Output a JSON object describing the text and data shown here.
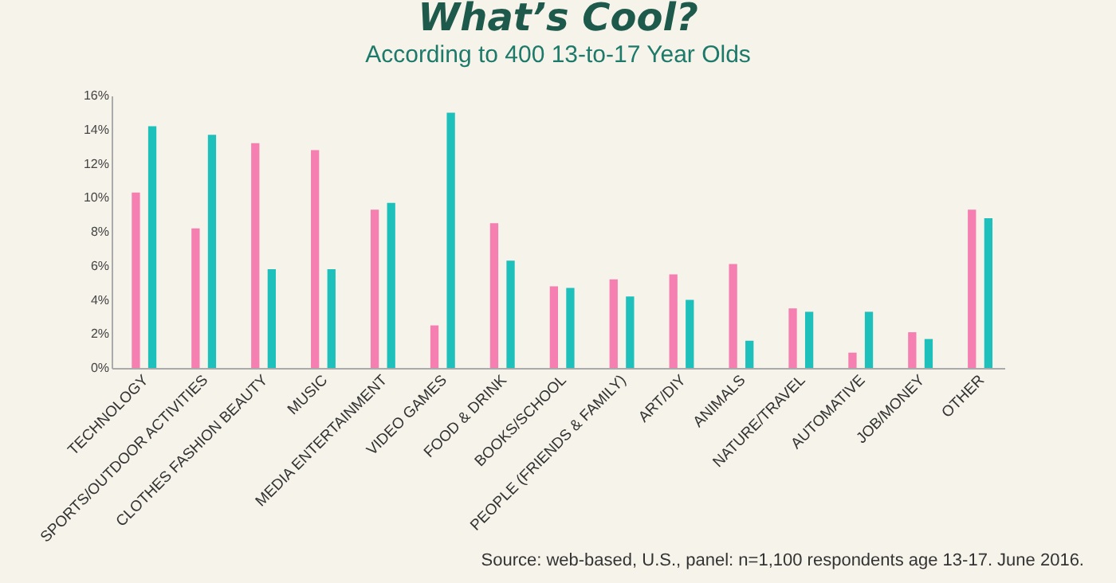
{
  "chart_data": {
    "type": "bar",
    "title": "What’s Cool?",
    "subtitle": "According to 400 13-to-17 Year Olds",
    "categories": [
      "TECHNOLOGY",
      "SPORTS/OUTDOOR ACTIVITIES",
      "CLOTHES FASHION BEAUTY",
      "MUSIC",
      "MEDIA ENTERTAINMENT",
      "VIDEO GAMES",
      "FOOD & DRINK",
      "BOOKS/SCHOOL",
      "PEOPLE (FRIENDS & FAMILY)",
      "ART/DIY",
      "ANIMALS",
      "NATURE/TRAVEL",
      "AUTOMATIVE",
      "JOB/MONEY",
      "OTHER"
    ],
    "series": [
      {
        "color": "#f47fb0",
        "values": [
          10.3,
          8.2,
          13.2,
          12.8,
          9.3,
          2.5,
          8.5,
          4.8,
          5.2,
          5.5,
          6.1,
          3.5,
          0.9,
          2.1,
          9.3
        ]
      },
      {
        "color": "#1ec0bb",
        "values": [
          14.2,
          13.7,
          5.8,
          5.8,
          9.7,
          15.0,
          6.3,
          4.7,
          4.2,
          4.0,
          1.6,
          3.3,
          3.3,
          1.7,
          8.8
        ]
      }
    ],
    "ylim": [
      0,
      16
    ],
    "yticks": [
      {
        "value": 0,
        "label": "0%"
      },
      {
        "value": 2,
        "label": "2%"
      },
      {
        "value": 4,
        "label": "4%"
      },
      {
        "value": 6,
        "label": "6%"
      },
      {
        "value": 8,
        "label": "8%"
      },
      {
        "value": 10,
        "label": "10%"
      },
      {
        "value": 12,
        "label": "12%"
      },
      {
        "value": 14,
        "label": "14%"
      },
      {
        "value": 16,
        "label": "16%"
      }
    ],
    "grid": false,
    "annotations": [
      "Source: web-based, U.S., panel: n=1,100 respondents age 13-17. June 2016."
    ]
  }
}
